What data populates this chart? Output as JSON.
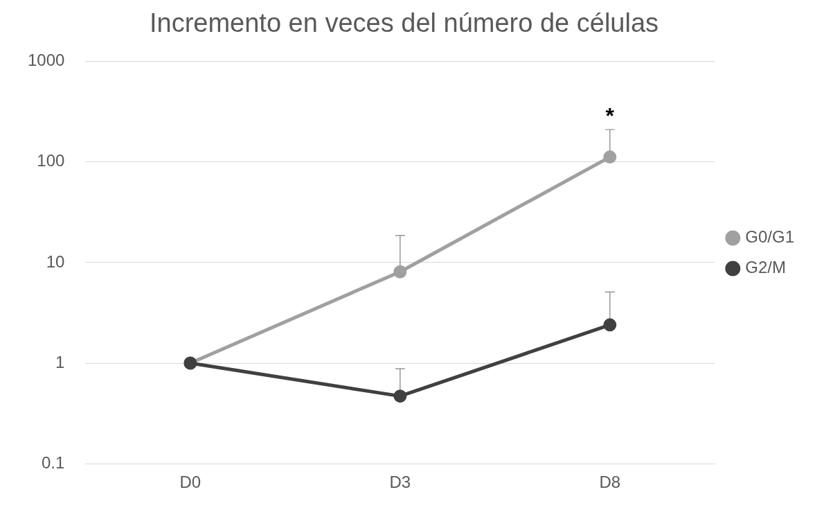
{
  "chart_data": {
    "type": "line",
    "title": "Incremento en veces del número de células",
    "categories": [
      "D0",
      "D3",
      "D8"
    ],
    "series": [
      {
        "name": "G0/G1",
        "color": "#a0a0a0",
        "values": [
          1,
          8.1,
          112
        ],
        "errors": [
          null,
          [
            8.1,
            18.6
          ],
          [
            112,
            210
          ]
        ]
      },
      {
        "name": "G2/M",
        "color": "#404040",
        "values": [
          1,
          0.47,
          2.4
        ],
        "errors": [
          null,
          [
            0.47,
            0.88
          ],
          [
            2.4,
            5.1
          ]
        ]
      }
    ],
    "log": "y",
    "ylim": [
      0.1,
      1000
    ],
    "yticks": [
      0.1,
      1,
      10,
      100,
      1000
    ],
    "grid": "y",
    "legend": "right",
    "marker": "circle",
    "line_style": "solid",
    "annotations": [
      {
        "text": "*",
        "x": "D8",
        "y": 210
      }
    ]
  }
}
